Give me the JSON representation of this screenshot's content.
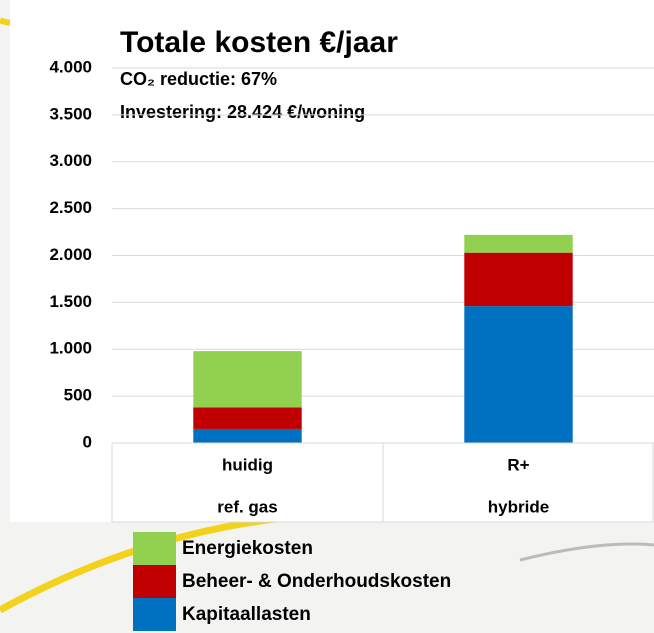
{
  "chart_data": {
    "type": "stacked-bar",
    "title": "Totale kosten €/jaar",
    "subtitle": [
      "CO₂ reductie: 67%",
      "Investering: 28.424 €/woning"
    ],
    "categories": [
      "huidig",
      "R+"
    ],
    "subcategories": [
      "ref. gas",
      "hybride"
    ],
    "series": [
      {
        "name": "Kapitaallasten",
        "color": "#0070c0",
        "values": [
          150,
          1460
        ]
      },
      {
        "name": "Beheer- & Onderhoudskosten",
        "color": "#c00000",
        "values": [
          230,
          570
        ]
      },
      {
        "name": "Energiekosten",
        "color": "#92d050",
        "values": [
          600,
          190
        ]
      }
    ],
    "ylim": [
      0,
      4000
    ],
    "yticks": [
      0,
      500,
      {
        "value": 1000,
        "label": "1.000"
      },
      {
        "value": 1500,
        "label": "1.500"
      },
      {
        "value": 2000,
        "label": "2.000"
      },
      {
        "value": 2500,
        "label": "2.500"
      },
      {
        "value": 3000,
        "label": "3.000"
      },
      {
        "value": 3500,
        "label": "3.500"
      },
      {
        "value": 4000,
        "label": "4.000"
      }
    ],
    "grid": true
  }
}
